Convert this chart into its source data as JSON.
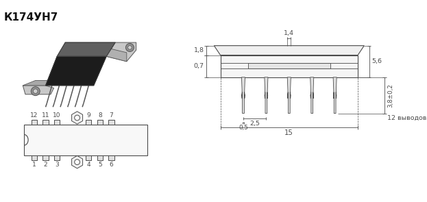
{
  "title": "К174УН7",
  "bg_color": "#ffffff",
  "line_color": "#4a4a4a",
  "title_fontsize": 11,
  "dim_labels": [
    "1,4",
    "1,8",
    "0,7",
    "0,5",
    "2,5",
    "15",
    "5,6",
    "3,8±0,2",
    "12 выводов"
  ]
}
